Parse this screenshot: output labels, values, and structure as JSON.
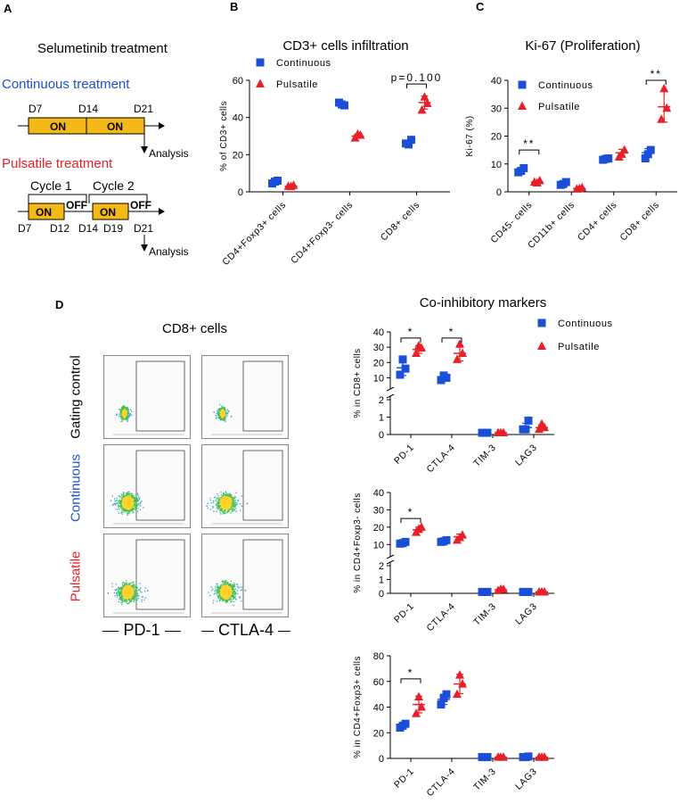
{
  "panelA": {
    "letter": "A",
    "title": "Selumetinib treatment",
    "continuous_label": "Continuous treatment",
    "pulsatile_label": "Pulsatile treatment",
    "cont_days": [
      "D7",
      "D14",
      "D21"
    ],
    "cont_bars": [
      "ON",
      "ON"
    ],
    "analysis": "Analysis",
    "cycles": [
      "Cycle 1",
      "Cycle 2"
    ],
    "puls_on": [
      "ON",
      "ON"
    ],
    "puls_off": [
      "OFF",
      "OFF"
    ],
    "puls_days": [
      "D7",
      "D12",
      "D14",
      "D19",
      "D21"
    ],
    "colors": {
      "on_fill": "#f5b917",
      "blue": "#1a4fd6",
      "red": "#e8202a"
    }
  },
  "panelD_flow": {
    "letter": "D",
    "title": "CD8+ cells",
    "rows": [
      "Gating control",
      "Continuous",
      "Pulsatile"
    ],
    "cols": [
      "PD-1",
      "CTLA-4"
    ]
  },
  "chart_data": [
    {
      "id": "B",
      "letter": "B",
      "type": "scatter",
      "title": "CD3+ cells infiltration",
      "ylabel": "% of CD3+ cells",
      "ylim": [
        0,
        60
      ],
      "yticks": [
        0,
        20,
        40,
        60
      ],
      "categories": [
        "CD4+Foxp3+ cells",
        "CD4+Foxp3- cells",
        "CD8+ cells"
      ],
      "series": [
        {
          "name": "Continuous",
          "color": "#1a4fd6",
          "marker": "square",
          "points": [
            [
              4.5,
              6,
              5.5
            ],
            [
              48,
              46.5,
              47
            ],
            [
              26,
              28,
              25.5
            ]
          ],
          "means": [
            5.5,
            47,
            26.5
          ]
        },
        {
          "name": "Pulsatile",
          "color": "#e8202a",
          "marker": "triangle",
          "points": [
            [
              3,
              3.5,
              2.8
            ],
            [
              29,
              30.5,
              31
            ],
            [
              44,
              47.5,
              51
            ]
          ],
          "means": [
            3,
            30,
            48
          ]
        }
      ],
      "annotations": [
        {
          "text": "p=0.100",
          "category": 2,
          "y": 58
        }
      ],
      "legend": "top-left"
    },
    {
      "id": "C",
      "letter": "C",
      "type": "scatter",
      "title": "Ki-67 (Proliferation)",
      "ylabel": "Ki-67 (%)",
      "ylim": [
        0,
        40
      ],
      "yticks": [
        0,
        10,
        20,
        30,
        40
      ],
      "categories": [
        "CD45- cells",
        "CD11b+ cells",
        "CD4+ cells",
        "CD8+ cells"
      ],
      "series": [
        {
          "name": "Continuous",
          "color": "#1a4fd6",
          "marker": "square",
          "points": [
            [
              7,
              8.5,
              7.5
            ],
            [
              2.5,
              3.5,
              2.8
            ],
            [
              11.5,
              12,
              11.8
            ],
            [
              12,
              15,
              13.5
            ]
          ],
          "means": [
            7.8,
            3,
            11.8,
            14
          ]
        },
        {
          "name": "Pulsatile",
          "color": "#e8202a",
          "marker": "triangle",
          "points": [
            [
              3.5,
              4,
              3.2
            ],
            [
              1,
              1.5,
              1.2
            ],
            [
              12.5,
              15,
              13.5
            ],
            [
              26,
              30,
              37
            ]
          ],
          "means": [
            3.5,
            1.2,
            14,
            30.5
          ]
        }
      ],
      "annotations": [
        {
          "text": "**",
          "category": 0,
          "y": 15
        },
        {
          "text": "**",
          "category": 3,
          "y": 40
        }
      ],
      "legend": "top-left"
    },
    {
      "id": "D1",
      "type": "scatter",
      "title": "Co-inhibitory markers",
      "ylabel": "% in CD8+ cells",
      "axis_break": {
        "lower": [
          0,
          2
        ],
        "upper": [
          5,
          40
        ]
      },
      "yticks_upper": [
        10,
        20,
        30,
        40
      ],
      "yticks_lower": [
        0,
        1,
        2
      ],
      "categories": [
        "PD-1",
        "CTLA-4",
        "TIM-3",
        "LAG3"
      ],
      "series": [
        {
          "name": "Continuous",
          "color": "#1a4fd6",
          "marker": "square",
          "points": [
            [
              12,
              16,
              22
            ],
            [
              8.5,
              10,
              11.5
            ],
            [
              0.1,
              0.1,
              0.1
            ],
            [
              0.3,
              0.8,
              0.3
            ]
          ],
          "means": [
            16.5,
            10,
            0.1,
            0.4
          ]
        },
        {
          "name": "Pulsatile",
          "color": "#e8202a",
          "marker": "triangle",
          "points": [
            [
              26,
              29.5,
              31
            ],
            [
              22,
              26,
              32
            ],
            [
              0.1,
              0.1,
              0.1
            ],
            [
              0.3,
              0.4,
              0.6
            ]
          ],
          "means": [
            28.5,
            26,
            0.1,
            0.4
          ]
        }
      ],
      "annotations": [
        {
          "text": "*",
          "category": 0,
          "y": 36
        },
        {
          "text": "*",
          "category": 1,
          "y": 36
        }
      ],
      "legend": "top-right"
    },
    {
      "id": "D2",
      "type": "scatter",
      "ylabel": "% in CD4+Foxp3- cells",
      "axis_break": {
        "lower": [
          0,
          2
        ],
        "upper": [
          5,
          40
        ]
      },
      "yticks_upper": [
        10,
        20,
        30,
        40
      ],
      "yticks_lower": [
        0,
        1,
        2
      ],
      "categories": [
        "PD-1",
        "CTLA-4",
        "TIM-3",
        "LAG3"
      ],
      "series": [
        {
          "name": "Continuous",
          "color": "#1a4fd6",
          "marker": "square",
          "points": [
            [
              10.5,
              11.5,
              10.8
            ],
            [
              11.5,
              12.5,
              11.8
            ],
            [
              0.1,
              0.1,
              0.1
            ],
            [
              0.1,
              0.1,
              0.1
            ]
          ],
          "means": [
            11,
            12,
            0.1,
            0.1
          ]
        },
        {
          "name": "Pulsatile",
          "color": "#e8202a",
          "marker": "triangle",
          "points": [
            [
              17,
              20,
              19
            ],
            [
              12.5,
              15.5,
              14
            ],
            [
              0.2,
              0.3,
              0.3
            ],
            [
              0.1,
              0.1,
              0.1
            ]
          ],
          "means": [
            18.5,
            14.5,
            0.25,
            0.1
          ]
        }
      ],
      "annotations": [
        {
          "text": "*",
          "category": 0,
          "y": 25
        }
      ],
      "legend": "none"
    },
    {
      "id": "D3",
      "type": "scatter",
      "ylabel": "% in CD4+Foxp3+ cells",
      "ylim": [
        0,
        80
      ],
      "yticks": [
        0,
        20,
        40,
        60,
        80
      ],
      "categories": [
        "PD-1",
        "CTLA-4",
        "TIM-3",
        "LAG3"
      ],
      "series": [
        {
          "name": "Continuous",
          "color": "#1a4fd6",
          "marker": "square",
          "points": [
            [
              24,
              27,
              25.5
            ],
            [
              42,
              50,
              47
            ],
            [
              1,
              1,
              1
            ],
            [
              1,
              1.5,
              1
            ]
          ],
          "means": [
            25.5,
            46,
            1,
            1
          ]
        },
        {
          "name": "Pulsatile",
          "color": "#e8202a",
          "marker": "triangle",
          "points": [
            [
              35,
              40,
              48
            ],
            [
              50,
              58,
              65
            ],
            [
              1,
              1,
              1
            ],
            [
              1,
              1,
              1
            ]
          ],
          "means": [
            42,
            58,
            1,
            1
          ]
        }
      ],
      "annotations": [
        {
          "text": "*",
          "category": 0,
          "y": 62
        }
      ],
      "legend": "none"
    }
  ]
}
